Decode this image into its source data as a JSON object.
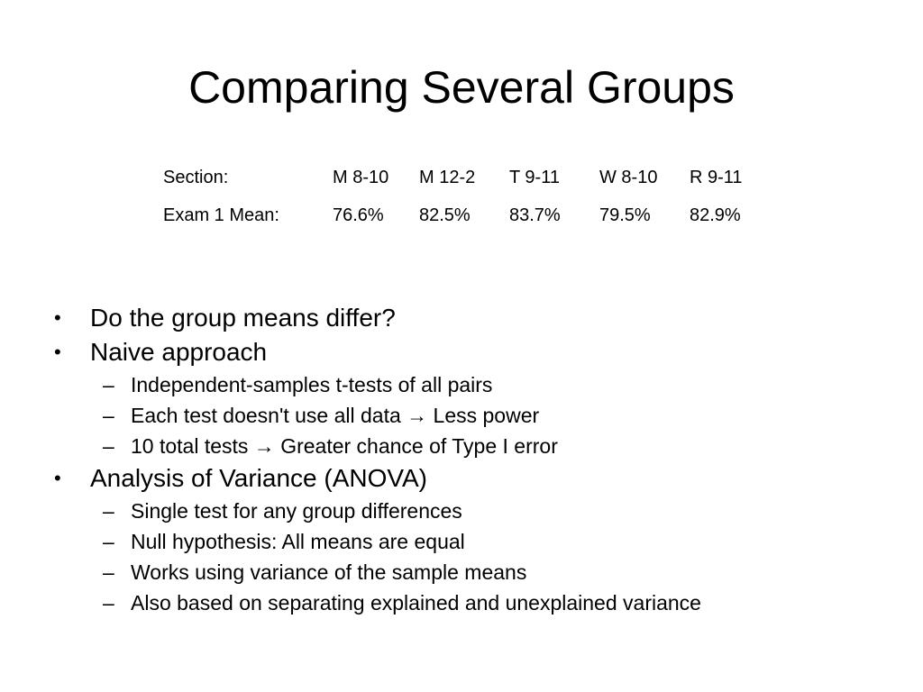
{
  "slide": {
    "title": "Comparing Several Groups",
    "table": {
      "header_label": "Section:",
      "sections": [
        "M 8-10",
        "M 12-2",
        "T 9-11",
        "W 8-10",
        "R 9-11"
      ],
      "row_label": "Exam 1 Mean:",
      "means": [
        "76.6%",
        "82.5%",
        "83.7%",
        "79.5%",
        "82.9%"
      ]
    },
    "bullets": [
      {
        "text": "Do the group means differ?",
        "subs": []
      },
      {
        "text": "Naive approach",
        "subs": [
          "Independent-samples t-tests of all pairs",
          "Each test doesn't use all data  → Less power",
          "10 total tests  → Greater chance of Type I error"
        ]
      },
      {
        "text": "Analysis of Variance (ANOVA)",
        "subs": [
          "Single test for any group differences",
          "Null hypothesis: All means are equal",
          "Works using variance of the sample means",
          "Also based on separating explained and unexplained variance"
        ]
      }
    ],
    "bullet_symbol": "•",
    "sub_bullet_symbol": "–"
  }
}
